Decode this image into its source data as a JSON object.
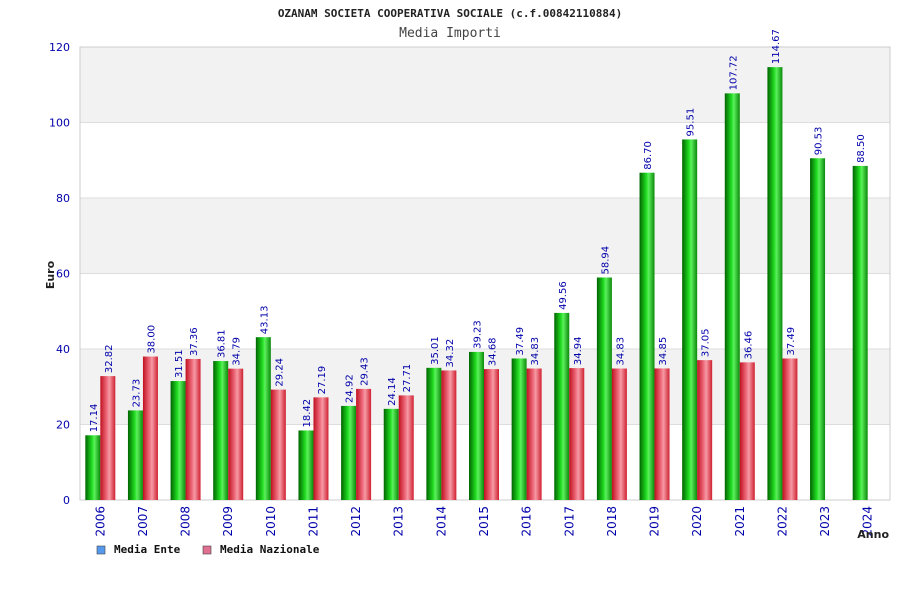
{
  "chart_data": {
    "type": "bar",
    "title": "OZANAM SOCIETA COOPERATIVA SOCIALE (c.f.00842110884)",
    "subtitle": "Media Importi",
    "xlabel": "Anno",
    "ylabel": "Euro",
    "ylim": [
      0,
      120
    ],
    "yticks": [
      0,
      20,
      40,
      60,
      80,
      100,
      120
    ],
    "grid": true,
    "legend_position": "bottom-left",
    "categories": [
      "2006",
      "2007",
      "2008",
      "2009",
      "2010",
      "2011",
      "2012",
      "2013",
      "2014",
      "2015",
      "2016",
      "2017",
      "2018",
      "2019",
      "2020",
      "2021",
      "2022",
      "2023",
      "2024"
    ],
    "series": [
      {
        "name": "Media Ente",
        "values": [
          17.14,
          23.73,
          31.51,
          36.81,
          43.13,
          18.42,
          24.92,
          24.14,
          35.01,
          39.23,
          37.49,
          49.56,
          58.94,
          86.7,
          95.51,
          107.72,
          114.67,
          90.53,
          88.5
        ],
        "labels": [
          "17.14",
          "23.73",
          "31.51",
          "36.81",
          "43.13",
          "18.42",
          "24.92",
          "24.14",
          "35.01",
          "39.23",
          "37.49",
          "49.56",
          "58.94",
          "86.70",
          "95.51",
          "107.72",
          "114.67",
          "90.53",
          "88.50"
        ],
        "bar_color": "#10b010",
        "legend_color": "#5599ee"
      },
      {
        "name": "Media Nazionale",
        "values": [
          32.82,
          38.0,
          37.36,
          34.79,
          29.24,
          27.19,
          29.43,
          27.71,
          34.32,
          34.68,
          34.83,
          34.94,
          34.83,
          34.85,
          37.05,
          36.46,
          37.49,
          null,
          null
        ],
        "labels": [
          "32.82",
          "38.00",
          "37.36",
          "34.79",
          "29.24",
          "27.19",
          "29.43",
          "27.71",
          "34.32",
          "34.68",
          "34.83",
          "34.94",
          "34.83",
          "34.85",
          "37.05",
          "36.46",
          "37.49",
          "",
          ""
        ],
        "bar_color": "#e84050",
        "legend_color": "#e07090"
      }
    ]
  }
}
